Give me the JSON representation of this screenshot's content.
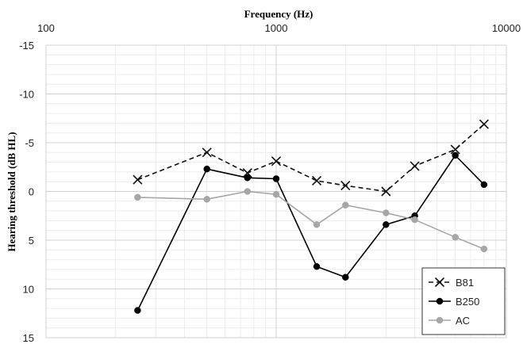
{
  "chart_data": {
    "type": "line",
    "title": "Frequency (Hz)",
    "xlabel": "Frequency (Hz)",
    "ylabel": "Hearing threshold (dB HL)",
    "x_scale": "log",
    "x_axis_position": "top",
    "xlim": [
      100,
      10000
    ],
    "x_ticks": [
      100,
      1000,
      10000
    ],
    "x_tick_labels": [
      "100",
      "1000",
      "10000"
    ],
    "y_inverted": true,
    "ylim": [
      -15,
      15
    ],
    "y_ticks": [
      -15,
      -10,
      -5,
      0,
      5,
      10,
      15
    ],
    "y_tick_labels": [
      "-15",
      "-10",
      "-5",
      "0",
      "5",
      "10",
      "15"
    ],
    "grid": true,
    "legend_position": "bottom-right",
    "series": [
      {
        "name": "B81",
        "color": "#111111",
        "line_style": "dashed",
        "marker": "x",
        "x": [
          250,
          500,
          750,
          1000,
          1500,
          2000,
          3000,
          4000,
          6000,
          8000
        ],
        "values": [
          -1.2,
          -4.0,
          -1.9,
          -3.1,
          -1.1,
          -0.6,
          0.0,
          -2.6,
          -4.3,
          -6.9
        ]
      },
      {
        "name": "B250",
        "color": "#000000",
        "line_style": "solid",
        "marker": "circle",
        "x": [
          250,
          500,
          750,
          1000,
          1500,
          2000,
          3000,
          4000,
          6000,
          8000
        ],
        "values": [
          12.2,
          -2.3,
          -1.4,
          -1.3,
          7.7,
          8.8,
          3.4,
          2.5,
          -3.7,
          -0.7
        ]
      },
      {
        "name": "AC",
        "color": "#a6a6a6",
        "line_style": "solid",
        "marker": "circle",
        "x": [
          250,
          500,
          750,
          1000,
          1500,
          2000,
          3000,
          4000,
          6000,
          8000
        ],
        "values": [
          0.6,
          0.8,
          0.0,
          0.3,
          3.4,
          1.4,
          2.2,
          2.9,
          4.7,
          5.9
        ]
      }
    ]
  }
}
